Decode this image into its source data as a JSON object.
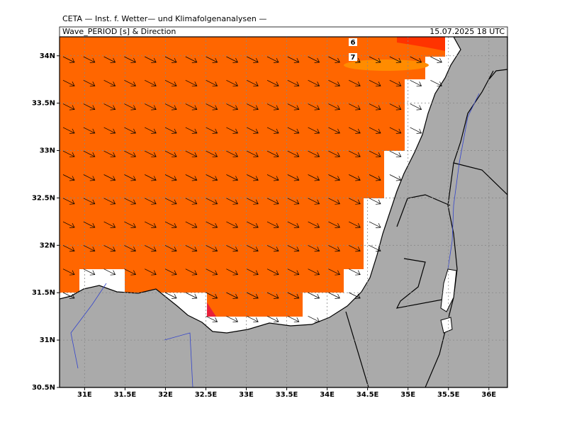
{
  "header": {
    "title": "CETA — Inst. f. Wetter— und Klimafolgenanalysen —",
    "subtitle": "Wave_PERIOD [s] & Direction",
    "date": "15.07.2025 18 UTC"
  },
  "map": {
    "xlim": [
      30.69,
      36.23
    ],
    "ylim": [
      30.5,
      34.2
    ],
    "xticks": [
      {
        "value": 31,
        "label": "31E"
      },
      {
        "value": 31.5,
        "label": "31.5E"
      },
      {
        "value": 32,
        "label": "32E"
      },
      {
        "value": 32.5,
        "label": "32.5E"
      },
      {
        "value": 33,
        "label": "33E"
      },
      {
        "value": 33.5,
        "label": "33.5E"
      },
      {
        "value": 34,
        "label": "34E"
      },
      {
        "value": 34.5,
        "label": "34.5E"
      },
      {
        "value": 35,
        "label": "35E"
      },
      {
        "value": 35.5,
        "label": "35.5E"
      },
      {
        "value": 36,
        "label": "36E"
      }
    ],
    "yticks": [
      {
        "value": 30.5,
        "label": "30.5N"
      },
      {
        "value": 31,
        "label": "31N"
      },
      {
        "value": 31.5,
        "label": "31.5N"
      },
      {
        "value": 32,
        "label": "32N"
      },
      {
        "value": 32.5,
        "label": "32.5N"
      },
      {
        "value": 33,
        "label": "33N"
      },
      {
        "value": 33.5,
        "label": "33.5N"
      },
      {
        "value": 34,
        "label": "34N"
      }
    ],
    "contour_labels": [
      "6",
      "7"
    ]
  }
}
